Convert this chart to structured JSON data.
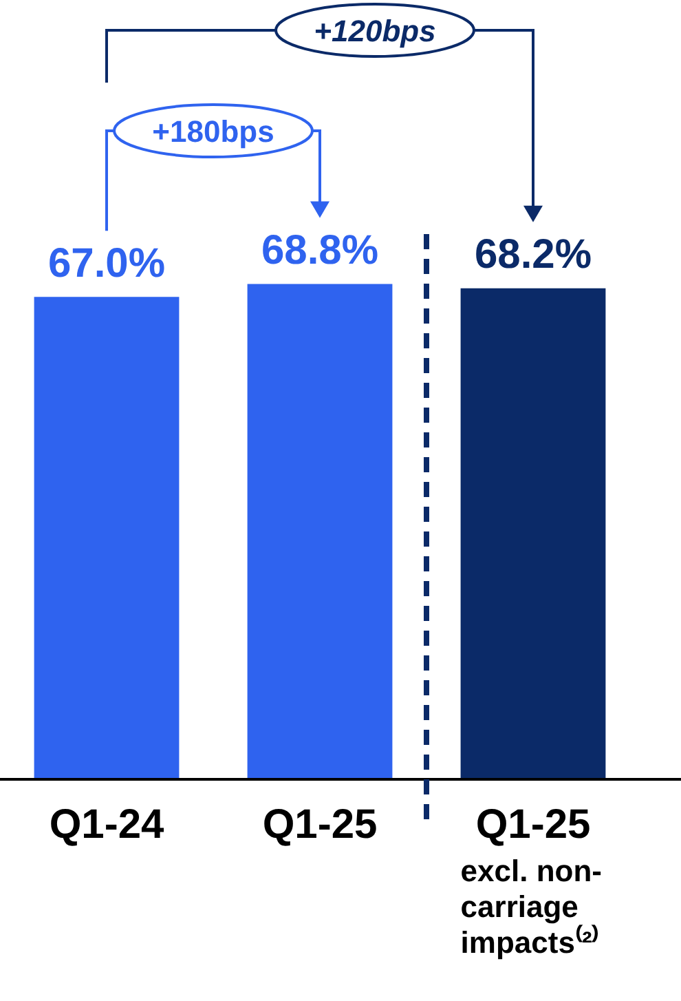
{
  "chart_data": {
    "type": "bar",
    "categories": [
      "Q1-24",
      "Q1-25",
      "Q1-25 excl. non-carriage impacts⁽²⁾"
    ],
    "values": [
      67.0,
      68.8,
      68.2
    ],
    "colors": [
      "#2f63ef",
      "#2f63ef",
      "#0b2a68"
    ],
    "value_labels": [
      "67.0%",
      "68.8%",
      "68.2%"
    ],
    "annotations": [
      "+120bps",
      "+180bps"
    ]
  }
}
